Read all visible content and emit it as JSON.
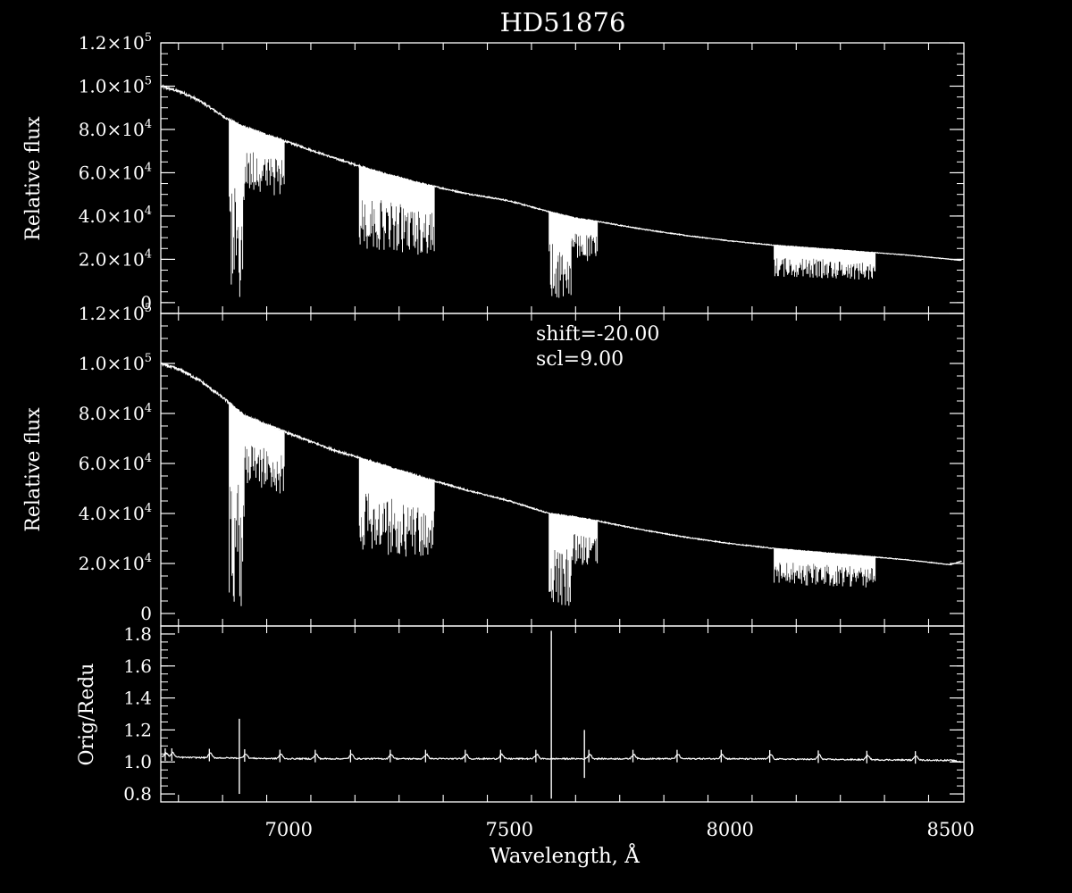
{
  "colors": {
    "background": "#000000",
    "foreground": "#ffffff"
  },
  "title": "HD51876",
  "xlabel": "Wavelength, Å",
  "chart_data": [
    {
      "type": "line",
      "panel": "top",
      "ylabel": "Relative flux",
      "xlim": [
        6710,
        8530
      ],
      "ylim": [
        -5000,
        120000
      ],
      "x_ticks": [
        7000,
        7500,
        8000,
        8500
      ],
      "y_ticks": [
        {
          "value": 0,
          "mant": "0",
          "exp": ""
        },
        {
          "value": 20000,
          "mant": "2.0×10",
          "exp": "4"
        },
        {
          "value": 40000,
          "mant": "4.0×10",
          "exp": "4"
        },
        {
          "value": 60000,
          "mant": "6.0×10",
          "exp": "4"
        },
        {
          "value": 80000,
          "mant": "8.0×10",
          "exp": "4"
        },
        {
          "value": 100000,
          "mant": "1.0×10",
          "exp": "5"
        },
        {
          "value": 120000,
          "mant": "1.2×10",
          "exp": "5"
        }
      ],
      "continuum": [
        [
          6710,
          100000
        ],
        [
          6760,
          97000
        ],
        [
          6800,
          93000
        ],
        [
          6860,
          85000
        ],
        [
          6900,
          81000
        ],
        [
          7000,
          74000
        ],
        [
          7100,
          67000
        ],
        [
          7200,
          60500
        ],
        [
          7300,
          55000
        ],
        [
          7400,
          50500
        ],
        [
          7500,
          47000
        ],
        [
          7590,
          42000
        ],
        [
          7650,
          39000
        ],
        [
          7700,
          37500
        ],
        [
          7800,
          34000
        ],
        [
          7900,
          31000
        ],
        [
          8000,
          28500
        ],
        [
          8100,
          26500
        ],
        [
          8200,
          25000
        ],
        [
          8300,
          23500
        ],
        [
          8400,
          22000
        ],
        [
          8500,
          20000
        ],
        [
          8525,
          19500
        ]
      ],
      "absorption_bands": [
        {
          "x0": 6865,
          "x1": 6900,
          "depth": 0.98
        },
        {
          "x0": 6900,
          "x1": 6990,
          "depth": 0.35
        },
        {
          "x0": 7160,
          "x1": 7330,
          "depth": 0.6
        },
        {
          "x0": 7590,
          "x1": 7640,
          "depth": 0.97
        },
        {
          "x0": 7640,
          "x1": 7700,
          "depth": 0.5
        },
        {
          "x0": 8100,
          "x1": 8330,
          "depth": 0.55
        }
      ]
    },
    {
      "type": "line",
      "panel": "middle",
      "ylabel": "Relative flux",
      "xlim": [
        6710,
        8530
      ],
      "ylim": [
        -5000,
        120000
      ],
      "annotations": [
        "shift=-20.00",
        "scl=9.00"
      ],
      "x_ticks": [
        7000,
        7500,
        8000,
        8500
      ],
      "y_ticks": [
        {
          "value": 0,
          "mant": "0",
          "exp": ""
        },
        {
          "value": 20000,
          "mant": "2.0×10",
          "exp": "4"
        },
        {
          "value": 40000,
          "mant": "4.0×10",
          "exp": "4"
        },
        {
          "value": 60000,
          "mant": "6.0×10",
          "exp": "4"
        },
        {
          "value": 80000,
          "mant": "8.0×10",
          "exp": "4"
        },
        {
          "value": 100000,
          "mant": "1.0×10",
          "exp": "5"
        },
        {
          "value": 120000,
          "mant": "1.2×10",
          "exp": "5"
        }
      ],
      "continuum": [
        [
          6710,
          100000
        ],
        [
          6760,
          97000
        ],
        [
          6800,
          93000
        ],
        [
          6860,
          85000
        ],
        [
          6900,
          79000
        ],
        [
          7000,
          72000
        ],
        [
          7100,
          65500
        ],
        [
          7200,
          60000
        ],
        [
          7300,
          54500
        ],
        [
          7400,
          49500
        ],
        [
          7500,
          45000
        ],
        [
          7590,
          40000
        ],
        [
          7650,
          38500
        ],
        [
          7700,
          37000
        ],
        [
          7800,
          33500
        ],
        [
          7900,
          30500
        ],
        [
          8000,
          28000
        ],
        [
          8100,
          26000
        ],
        [
          8200,
          24500
        ],
        [
          8300,
          23000
        ],
        [
          8400,
          21500
        ],
        [
          8500,
          19500
        ],
        [
          8525,
          21000
        ]
      ],
      "absorption_bands": [
        {
          "x0": 6865,
          "x1": 6900,
          "depth": 0.98
        },
        {
          "x0": 6900,
          "x1": 6990,
          "depth": 0.35
        },
        {
          "x0": 7160,
          "x1": 7330,
          "depth": 0.6
        },
        {
          "x0": 7590,
          "x1": 7640,
          "depth": 0.97
        },
        {
          "x0": 7640,
          "x1": 7700,
          "depth": 0.5
        },
        {
          "x0": 8100,
          "x1": 8330,
          "depth": 0.55
        }
      ]
    },
    {
      "type": "line",
      "panel": "bottom",
      "ylabel": "Orig/Redu",
      "xlim": [
        6710,
        8530
      ],
      "ylim": [
        0.75,
        1.85
      ],
      "x_ticks": [
        7000,
        7500,
        8000,
        8500
      ],
      "y_ticks": [
        {
          "value": 0.8,
          "mant": "0.8",
          "exp": ""
        },
        {
          "value": 1.0,
          "mant": "1.0",
          "exp": ""
        },
        {
          "value": 1.2,
          "mant": "1.2",
          "exp": ""
        },
        {
          "value": 1.4,
          "mant": "1.4",
          "exp": ""
        },
        {
          "value": 1.6,
          "mant": "1.6",
          "exp": ""
        },
        {
          "value": 1.8,
          "mant": "1.8",
          "exp": ""
        }
      ],
      "baseline": [
        [
          6710,
          1.03
        ],
        [
          7000,
          1.02
        ],
        [
          7500,
          1.02
        ],
        [
          8000,
          1.02
        ],
        [
          8500,
          1.01
        ],
        [
          8525,
          1.0
        ]
      ],
      "bumps": [
        6720,
        6735,
        6820,
        6900,
        6980,
        7060,
        7140,
        7230,
        7310,
        7400,
        7480,
        7560,
        7680,
        7780,
        7880,
        7980,
        8090,
        8200,
        8310,
        8420
      ],
      "spikes": [
        {
          "x": 6888,
          "ymin": 0.8,
          "ymax": 1.27
        },
        {
          "x": 7595,
          "ymin": 0.77,
          "ymax": 1.82
        },
        {
          "x": 7670,
          "ymin": 0.9,
          "ymax": 1.2
        }
      ]
    }
  ]
}
